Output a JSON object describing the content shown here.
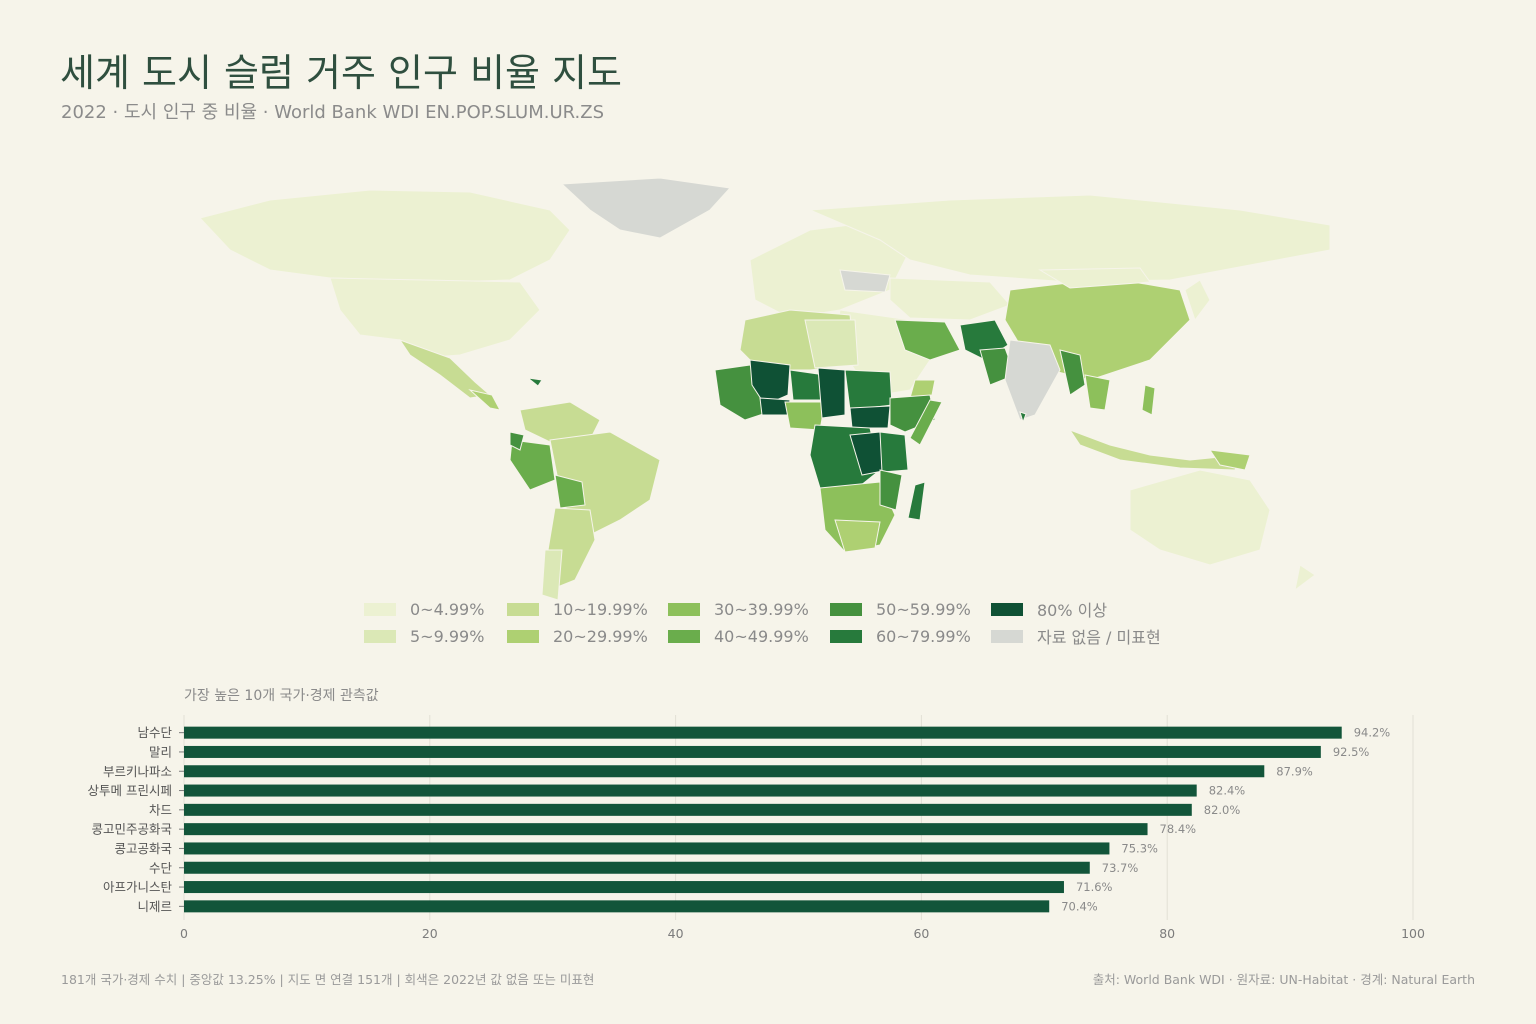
{
  "header": {
    "title": "세계 도시 슬럼 거주 인구 비율 지도",
    "subtitle": "2022 · 도시 인구 중 비율 · World Bank WDI EN.POP.SLUM.UR.ZS"
  },
  "legend": {
    "items": [
      {
        "label": "0~4.99%",
        "color": "#ecf1d2"
      },
      {
        "label": "5~9.99%",
        "color": "#dbe8b6"
      },
      {
        "label": "10~19.99%",
        "color": "#c7dc93"
      },
      {
        "label": "20~29.99%",
        "color": "#aed072"
      },
      {
        "label": "30~39.99%",
        "color": "#8dc05b"
      },
      {
        "label": "40~49.99%",
        "color": "#6aad4c"
      },
      {
        "label": "50~59.99%",
        "color": "#45913f"
      },
      {
        "label": "60~79.99%",
        "color": "#277a3c"
      },
      {
        "label": "80% 이상",
        "color": "#0f5135"
      },
      {
        "label": "자료 없음 / 미표현",
        "color": "#d6d8d3"
      }
    ]
  },
  "map_colors": {
    "land_low": "#ecf1d2",
    "no_data": "#d6d8d3",
    "border": "#f6f4ea"
  },
  "chart_data": {
    "type": "bar",
    "orientation": "horizontal",
    "title": "가장 높은 10개 국가·경제 관측값",
    "categories": [
      "남수단",
      "말리",
      "부르키나파소",
      "상투메 프린시페",
      "차드",
      "콩고민주공화국",
      "콩고공화국",
      "수단",
      "아프가니스탄",
      "니제르"
    ],
    "values": [
      94.2,
      92.5,
      87.9,
      82.4,
      82.0,
      78.4,
      75.3,
      73.7,
      71.6,
      70.4
    ],
    "value_labels": [
      "94.2%",
      "92.5%",
      "87.9%",
      "82.4%",
      "82.0%",
      "78.4%",
      "75.3%",
      "73.7%",
      "71.6%",
      "70.4%"
    ],
    "xlim": [
      0,
      100
    ],
    "xticks": [
      0,
      20,
      40,
      60,
      80,
      100
    ],
    "bar_color": "#12553a",
    "grid": true
  },
  "footer": {
    "left": "181개 국가·경제 수치 | 중앙값 13.25% | 지도 면 연결 151개 | 회색은 2022년 값 없음 또는 미표현",
    "right": "출처: World Bank WDI · 원자료: UN-Habitat · 경계: Natural Earth"
  }
}
